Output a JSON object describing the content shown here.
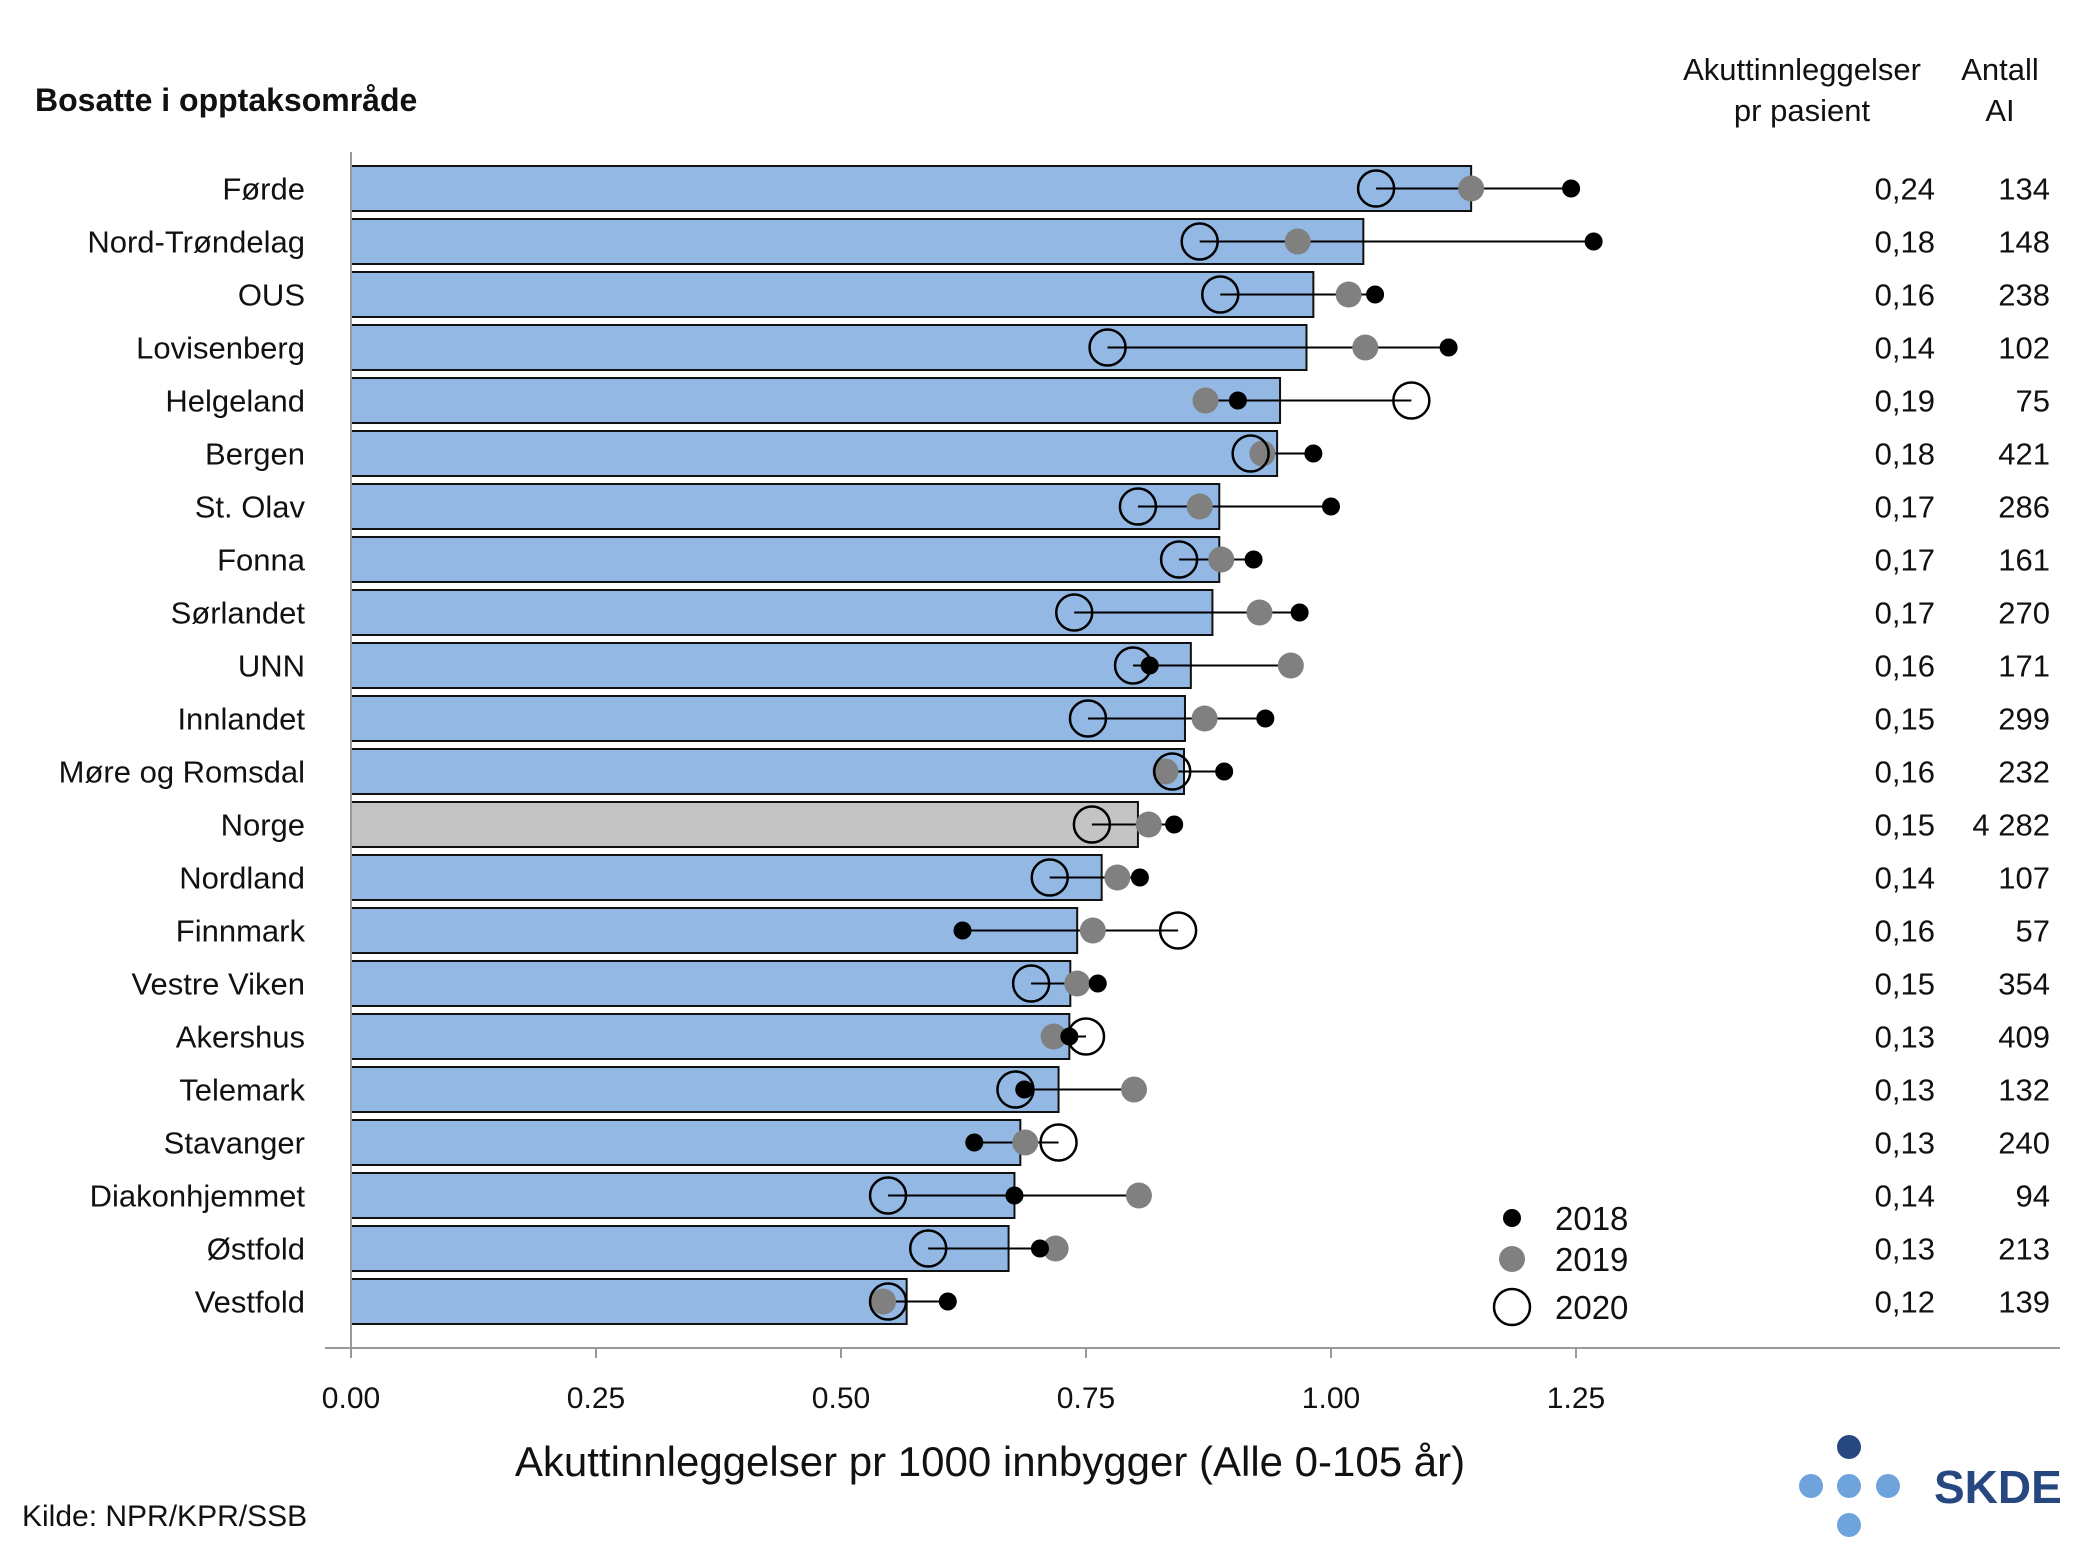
{
  "chart_data": {
    "type": "bar",
    "title": "",
    "y_title": "Bosatte i opptaksområde",
    "xlabel": "Akuttinnleggelser pr 1000 innbygger (Alle 0-105 år)",
    "source": "Kilde: NPR/KPR/SSB",
    "xlim": [
      0,
      1.25
    ],
    "x_ticks": [
      "0.00",
      "0.25",
      "0.50",
      "0.75",
      "1.00",
      "1.25"
    ],
    "x_tick_values": [
      0,
      0.25,
      0.5,
      0.75,
      1.0,
      1.25
    ],
    "column_headers": {
      "per_patient_line1": "Akuttinnleggelser",
      "per_patient_line2": "pr pasient",
      "count_line1": "Antall",
      "count_line2": "AI"
    },
    "legend": [
      {
        "label": "2018",
        "marker": "small-black-dot"
      },
      {
        "label": "2019",
        "marker": "grey-dot"
      },
      {
        "label": "2020",
        "marker": "open-circle"
      }
    ],
    "legend_position": "bottom-right",
    "categories": [
      "Førde",
      "Nord-Trøndelag",
      "OUS",
      "Lovisenberg",
      "Helgeland",
      "Bergen",
      "St. Olav",
      "Fonna",
      "Sørlandet",
      "UNN",
      "Innlandet",
      "Møre og Romsdal",
      "Norge",
      "Nordland",
      "Finnmark",
      "Vestre Viken",
      "Akershus",
      "Telemark",
      "Stavanger",
      "Diakonhjemmet",
      "Østfold",
      "Vestfold"
    ],
    "bar_values": [
      1.143,
      1.033,
      0.982,
      0.975,
      0.948,
      0.945,
      0.886,
      0.886,
      0.879,
      0.857,
      0.851,
      0.85,
      0.803,
      0.766,
      0.741,
      0.734,
      0.733,
      0.722,
      0.683,
      0.677,
      0.671,
      0.567
    ],
    "series": [
      {
        "name": "2018",
        "values": [
          1.245,
          1.268,
          1.045,
          1.12,
          0.905,
          0.982,
          1.0,
          0.921,
          0.968,
          0.815,
          0.933,
          0.891,
          0.84,
          0.805,
          0.624,
          0.762,
          0.733,
          0.687,
          0.636,
          0.677,
          0.703,
          0.609
        ]
      },
      {
        "name": "2019",
        "values": [
          1.143,
          0.966,
          1.018,
          1.035,
          0.872,
          0.93,
          0.866,
          0.888,
          0.927,
          0.959,
          0.871,
          0.831,
          0.814,
          0.782,
          0.757,
          0.741,
          0.717,
          0.799,
          0.688,
          0.804,
          0.719,
          0.543
        ]
      },
      {
        "name": "2020",
        "values": [
          1.046,
          0.866,
          0.887,
          0.772,
          1.082,
          0.918,
          0.803,
          0.845,
          0.738,
          0.798,
          0.752,
          0.838,
          0.756,
          0.713,
          0.844,
          0.694,
          0.75,
          0.678,
          0.722,
          0.548,
          0.589,
          0.548
        ]
      }
    ],
    "per_patient": [
      "0,24",
      "0,18",
      "0,16",
      "0,14",
      "0,19",
      "0,18",
      "0,17",
      "0,17",
      "0,17",
      "0,16",
      "0,15",
      "0,16",
      "0,15",
      "0,14",
      "0,16",
      "0,15",
      "0,13",
      "0,13",
      "0,13",
      "0,14",
      "0,13",
      "0,12"
    ],
    "antall_ai": [
      "134",
      "148",
      "238",
      "102",
      "75",
      "421",
      "286",
      "161",
      "270",
      "171",
      "299",
      "232",
      "4 282",
      "107",
      "57",
      "354",
      "409",
      "132",
      "240",
      "94",
      "213",
      "139"
    ],
    "highlight_category": "Norge",
    "colors": {
      "bar": "#93b8e3",
      "highlight_bar": "#c4c4c4",
      "bar_outline": "#111111",
      "dot_2018": "#000000",
      "dot_2019": "#808080",
      "axis": "#999999"
    }
  },
  "logo": {
    "text": "SKDE",
    "color": "#26477f",
    "dot_dark": "#26477f",
    "dot_light": "#6ea3dc"
  }
}
